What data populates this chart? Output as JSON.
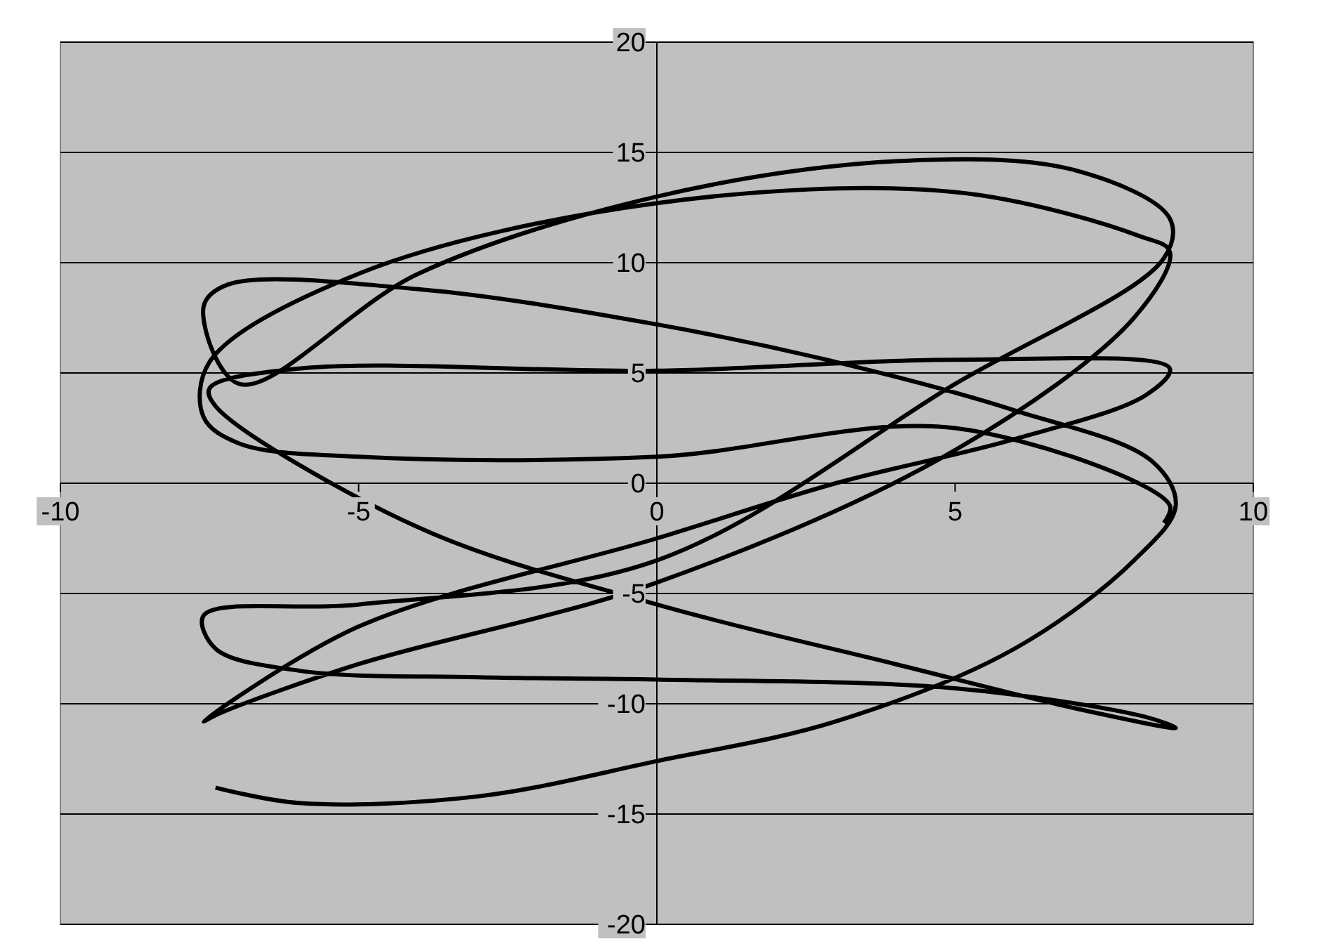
{
  "chart_data": {
    "type": "line",
    "xlim": [
      -10,
      10
    ],
    "ylim": [
      -20,
      20
    ],
    "xticks": [
      -10,
      -5,
      0,
      5,
      10
    ],
    "yticks": [
      -20,
      -15,
      -10,
      -5,
      0,
      5,
      10,
      15,
      20
    ],
    "grid": "y",
    "series": [
      {
        "color": "#000000",
        "x": [
          -7.4,
          -6,
          -3,
          0,
          3,
          6,
          8,
          8.7,
          8.3,
          6,
          3,
          0,
          -4,
          -7.2,
          -7.6,
          -7,
          -4,
          0,
          4,
          7,
          8.6,
          8.5,
          5,
          0,
          -5,
          -7.6,
          -7.4,
          -6,
          -3,
          0,
          5,
          8.2,
          8.7,
          7,
          4,
          0,
          -4,
          -7.4,
          -7.5,
          -6,
          0,
          5,
          8.6,
          8.2,
          6,
          3,
          0,
          -5,
          -7.6,
          -7.3,
          -5,
          0,
          5,
          8,
          8.6,
          8.1,
          5,
          0,
          -5,
          -7.5,
          -7.6,
          -7,
          -5,
          0,
          5,
          8.6,
          8.5
        ],
        "values": [
          -13.8,
          -14.5,
          -14.2,
          -12.6,
          -10.8,
          -7.5,
          -3.5,
          -1,
          1,
          3.3,
          5.5,
          7.2,
          8.8,
          9,
          8,
          4.5,
          9.5,
          13,
          14.6,
          14.2,
          12,
          10.2,
          4.5,
          -3.5,
          -5.5,
          -6,
          -7.5,
          -8.5,
          -8.8,
          -8.9,
          -9.3,
          -10.6,
          -11.1,
          -10.2,
          -8.2,
          -5.5,
          -2,
          3.5,
          4.3,
          5.2,
          5.1,
          5.6,
          5.2,
          4,
          2,
          0,
          -2.5,
          -6.5,
          -10.8,
          -10.4,
          -8.2,
          -4.5,
          1.5,
          7.5,
          10.5,
          11.2,
          13.2,
          12.7,
          9.5,
          5.5,
          3,
          1.8,
          1.2,
          1.2,
          2.5,
          -1,
          -1.8
        ]
      }
    ]
  }
}
